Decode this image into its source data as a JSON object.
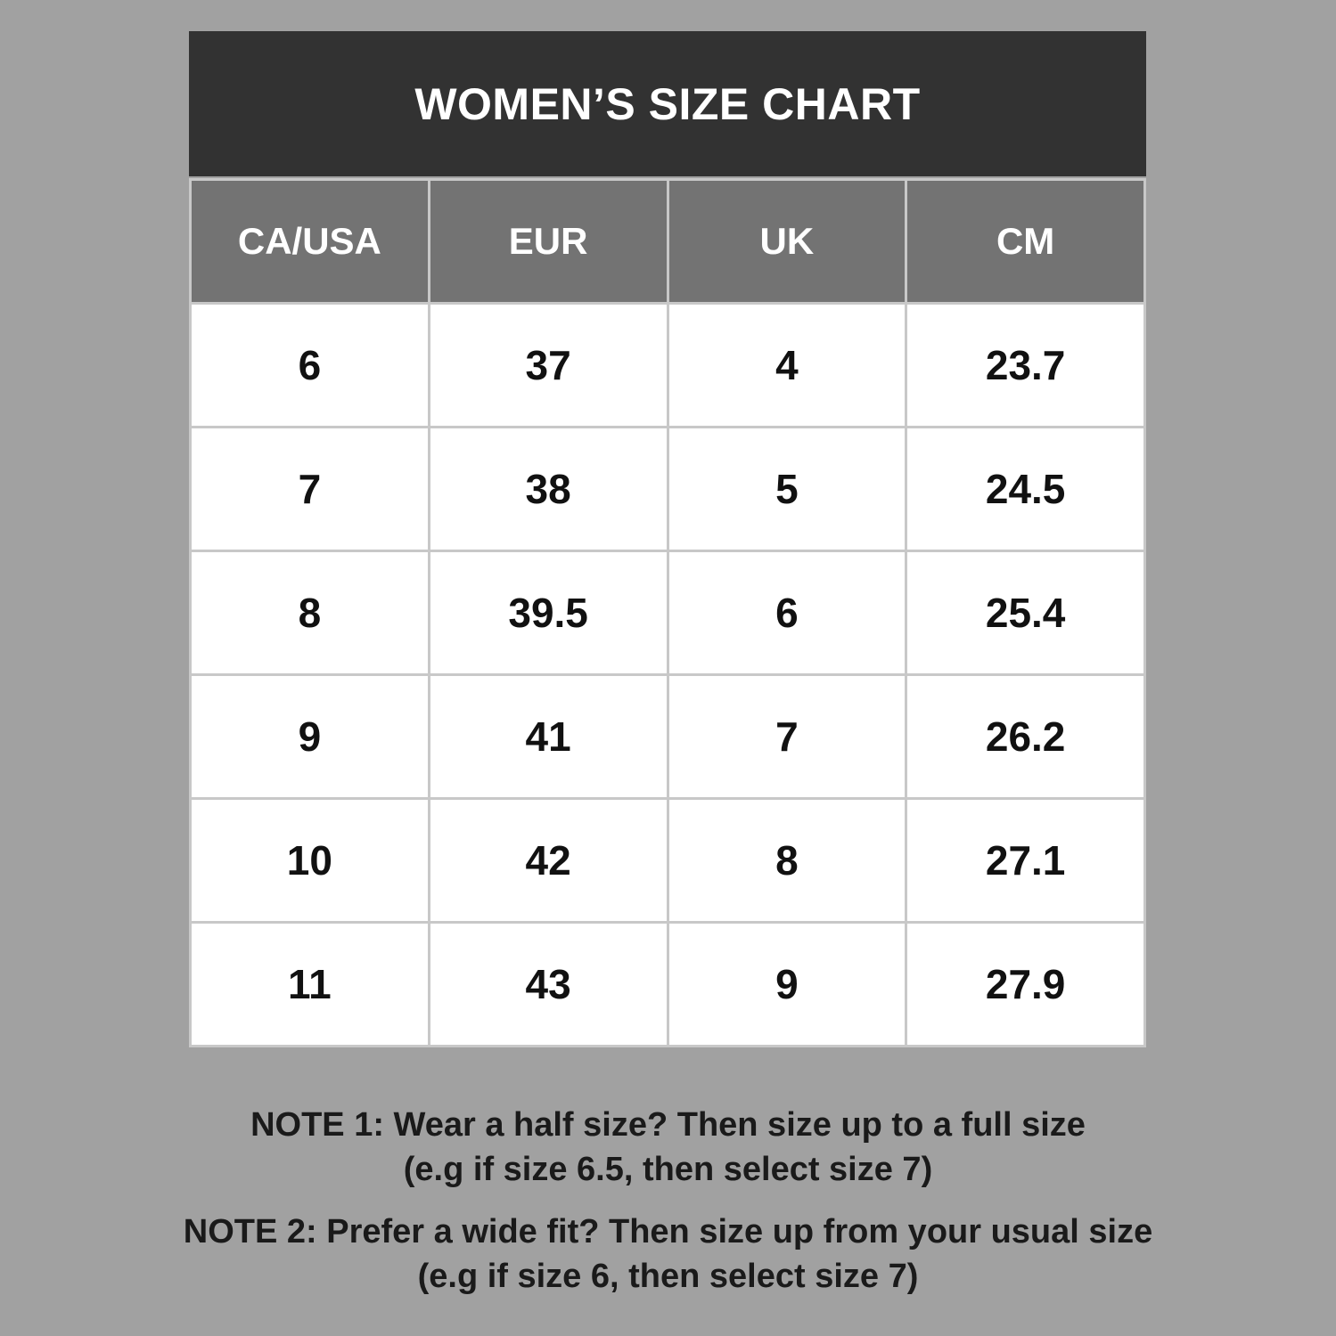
{
  "chart_data": {
    "type": "table",
    "title": "WOMEN’S SIZE CHART",
    "columns": [
      "CA/USA",
      "EUR",
      "UK",
      "CM"
    ],
    "rows": [
      [
        "6",
        "37",
        "4",
        "23.7"
      ],
      [
        "7",
        "38",
        "5",
        "24.5"
      ],
      [
        "8",
        "39.5",
        "6",
        "25.4"
      ],
      [
        "9",
        "41",
        "7",
        "26.2"
      ],
      [
        "10",
        "42",
        "8",
        "27.1"
      ],
      [
        "11",
        "43",
        "9",
        "27.9"
      ]
    ]
  },
  "notes": [
    {
      "line1": "NOTE 1: Wear a half size? Then size up to a full size",
      "line2": "(e.g if size 6.5, then select size 7)"
    },
    {
      "line1": "NOTE 2: Prefer a wide fit? Then size up from your usual size",
      "line2": "(e.g if size 6, then select size 7)"
    }
  ],
  "colors": {
    "background": "#a1a1a1",
    "title_bar": "#323232",
    "header_row": "#737373",
    "cell": "#ffffff",
    "border": "#c8c8c8"
  }
}
